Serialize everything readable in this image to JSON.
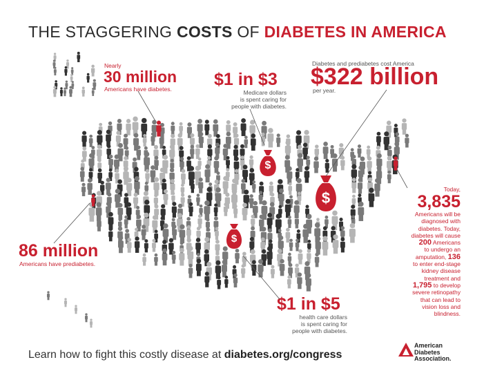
{
  "title": {
    "part1": "THE STAGGERING ",
    "part2": "COSTS",
    "part3": " OF ",
    "part4": "DIABETES IN AMERICA"
  },
  "stat_30m": {
    "pre": "Nearly",
    "value": "30 million",
    "caption": "Americans have diabetes."
  },
  "stat_1in3": {
    "value": "$1 in $3",
    "caption_line1": "Medicare dollars",
    "caption_line2": "is spent caring for",
    "caption_line3": "people with diabetes."
  },
  "stat_322b": {
    "pre": "Diabetes and prediabetes cost America",
    "value": "$322 billion",
    "caption": "per year."
  },
  "stat_86m": {
    "value": "86 million",
    "caption": "Americans have prediabetes."
  },
  "stat_1in5": {
    "value": "$1 in $5",
    "caption_line1": "health care dollars",
    "caption_line2": "is spent caring for",
    "caption_line3": "people with diabetes."
  },
  "stat_3835": {
    "pre": "Today,",
    "value": "3,835",
    "line1": "Americans will be",
    "line2": "diagnosed with",
    "line3": "diabetes. Today,",
    "line4": "diabetes will cause",
    "n200": "200",
    "line5": " Americans",
    "line6": "to undergo an",
    "line7a": "amputation, ",
    "n136": "136",
    "line8": "to enter end-stage",
    "line9": "kidney disease",
    "line10": "treatment and",
    "n1795": "1,795",
    "line11": " to develop",
    "line12": "severe retinopathy",
    "line13": "that can lead to",
    "line14": "vision loss and",
    "line15": "blindness."
  },
  "footer": {
    "text": "Learn how to fight this costly disease at ",
    "link": "diabetes.org/congress"
  },
  "logo": {
    "line1": "American",
    "line2": "Diabetes",
    "line3": "Association."
  },
  "bag_symbol": "$",
  "colors": {
    "accent": "#c8202f",
    "person_dark": "#333333",
    "person_mid": "#7a7a7a",
    "person_light": "#b5b5b5"
  }
}
